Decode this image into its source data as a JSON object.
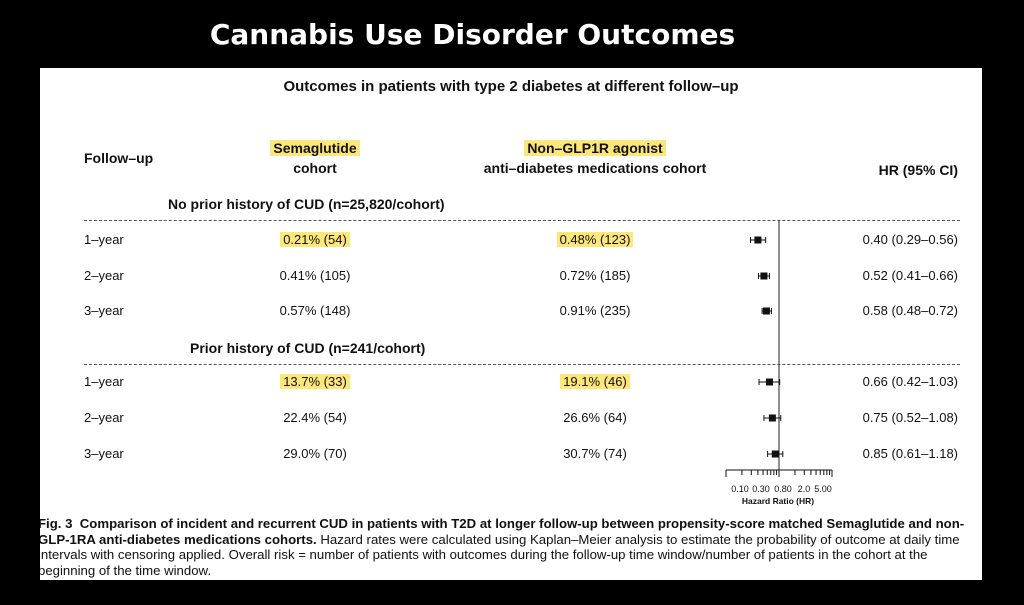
{
  "banner_title": "Cannabis Use Disorder Outcomes",
  "colors": {
    "highlight": "#fde67a",
    "background": "#000000",
    "panel": "#ffffff"
  },
  "chart_data": {
    "type": "forest",
    "title": "Outcomes in patients with type 2 diabetes at different follow–up",
    "headers": {
      "followup": "Follow–up",
      "sema_line1": "Semaglutide",
      "sema_line2": "cohort",
      "non_line1": "Non–GLP1R agonist",
      "non_line2": "anti–diabetes medications cohort",
      "hr": "HR (95% CI)"
    },
    "groups": [
      {
        "label": "No prior history of CUD (n=25,820/cohort)",
        "rows": [
          {
            "followup": "1–year",
            "semaglutide": "0.21% (54)",
            "non_glp1r": "0.48% (123)",
            "hr_text": "0.40 (0.29–0.56)",
            "hr": 0.4,
            "lo": 0.29,
            "hi": 0.56
          },
          {
            "followup": "2–year",
            "semaglutide": "0.41% (105)",
            "non_glp1r": "0.72% (185)",
            "hr_text": "0.52 (0.41–0.66)",
            "hr": 0.52,
            "lo": 0.41,
            "hi": 0.66
          },
          {
            "followup": "3–year",
            "semaglutide": "0.57% (148)",
            "non_glp1r": "0.91% (235)",
            "hr_text": "0.58 (0.48–0.72)",
            "hr": 0.58,
            "lo": 0.48,
            "hi": 0.72
          }
        ]
      },
      {
        "label": "Prior history of CUD (n=241/cohort)",
        "rows": [
          {
            "followup": "1–year",
            "semaglutide": "13.7% (33)",
            "non_glp1r": "19.1% (46)",
            "hr_text": "0.66 (0.42–1.03)",
            "hr": 0.66,
            "lo": 0.42,
            "hi": 1.03
          },
          {
            "followup": "2–year",
            "semaglutide": "22.4% (54)",
            "non_glp1r": "26.6% (64)",
            "hr_text": "0.75 (0.52–1.08)",
            "hr": 0.75,
            "lo": 0.52,
            "hi": 1.08
          },
          {
            "followup": "3–year",
            "semaglutide": "29.0% (70)",
            "non_glp1r": "30.7% (74)",
            "hr_text": "0.85 (0.61–1.18)",
            "hr": 0.85,
            "lo": 0.61,
            "hi": 1.18
          }
        ]
      }
    ],
    "x_axis": {
      "scale": "log",
      "range": [
        0.1,
        10
      ],
      "reference_line": 1.0,
      "tick_labels": [
        "0.10",
        "0.30",
        "0.80",
        "2.0",
        "5.00"
      ],
      "tick_values": [
        0.1,
        0.3,
        0.8,
        2.0,
        5.0
      ],
      "label": "Hazard Ratio (HR)"
    }
  },
  "caption": {
    "fig": "Fig. 3",
    "bold_text": "Comparison of incident and recurrent CUD in patients with T2D at longer follow-up between propensity-score matched Semaglutide and non-GLP-1RA anti-diabetes medications cohorts.",
    "body_text": "Hazard rates were calculated using Kaplan–Meier analysis to estimate the probability of outcome at daily time intervals with censoring applied. Overall risk = number of patients with outcomes during the follow-up time window/number of patients in the cohort at the beginning of the time window."
  }
}
